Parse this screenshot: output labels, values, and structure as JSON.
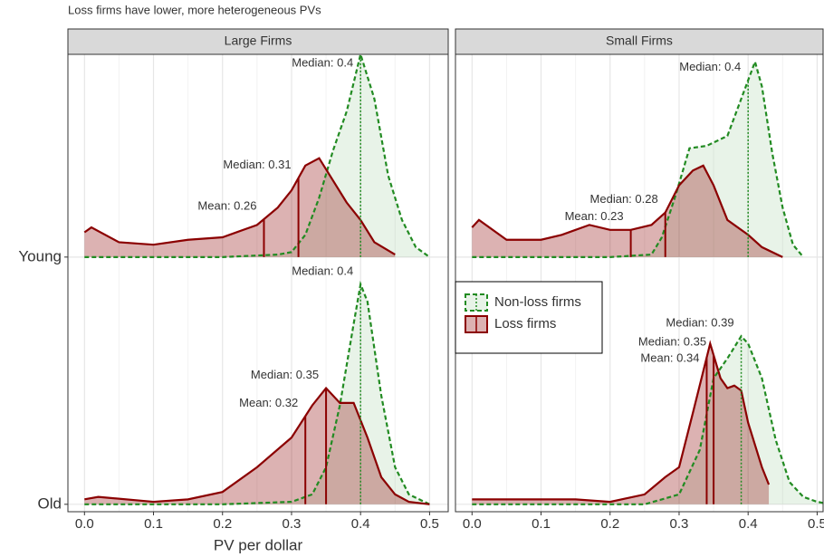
{
  "chart_data": {
    "type": "ridgeline",
    "title": "Loss firms have lower, more heterogeneous PVs",
    "x_label": "PV per dollar",
    "xlim": [
      -0.024,
      0.527
    ],
    "xticks": [
      {
        "value": 0,
        "label": "0.0"
      },
      0.1,
      0.2,
      0.3,
      0.4,
      0.5
    ],
    "ylim": [
      0.97,
      2.82
    ],
    "yticks": [
      {
        "value": 1,
        "label": "Old"
      },
      {
        "value": 2,
        "label": "Young"
      }
    ],
    "grid": true,
    "series": [
      {
        "name": "Non-loss firms",
        "color": "#228B22",
        "linetype": "dashed",
        "fill_opacity": 0.1
      },
      {
        "name": "Loss firms",
        "color": "#8B0000",
        "linetype": "solid",
        "fill_opacity": 0.3
      }
    ],
    "facets": [
      {
        "title": "Large Firms",
        "ridges": [
          {
            "curves": [
              {
                "x": [
                  0,
                  0.2,
                  0.3,
                  0.33,
                  0.35,
                  0.37,
                  0.39,
                  0.4,
                  0.41,
                  0.43,
                  0.45,
                  0.47,
                  0.5
                ],
                "density": [
                  0,
                  0,
                  0.01,
                  0.04,
                  0.15,
                  0.4,
                  0.73,
                  0.89,
                  0.82,
                  0.44,
                  0.15,
                  0.04,
                  0
                ],
                "median": 0.4,
                "median_label": "Median: 0.4"
              },
              {
                "x": [
                  0,
                  0.02,
                  0.1,
                  0.15,
                  0.2,
                  0.25,
                  0.3,
                  0.33,
                  0.35,
                  0.37,
                  0.39,
                  0.41,
                  0.43,
                  0.45,
                  0.47,
                  0.5
                ],
                "density": [
                  0.02,
                  0.03,
                  0.01,
                  0.02,
                  0.05,
                  0.15,
                  0.27,
                  0.4,
                  0.47,
                  0.41,
                  0.41,
                  0.27,
                  0.11,
                  0.04,
                  0.01,
                  0
                ],
                "median": 0.35,
                "median_label": "Median: 0.35",
                "mean": 0.32,
                "mean_label": "Mean: 0.32"
              }
            ]
          },
          {
            "curves": [
              {
                "x": [
                  0,
                  0.1,
                  0.2,
                  0.28,
                  0.3,
                  0.32,
                  0.34,
                  0.36,
                  0.38,
                  0.4,
                  0.42,
                  0.44,
                  0.46,
                  0.48,
                  0.5
                ],
                "density": [
                  0,
                  0,
                  0,
                  0.01,
                  0.02,
                  0.09,
                  0.24,
                  0.43,
                  0.59,
                  0.82,
                  0.64,
                  0.33,
                  0.15,
                  0.04,
                  0
                ],
                "median": 0.4,
                "median_label": "Median: 0.4"
              },
              {
                "x": [
                  0,
                  0.01,
                  0.05,
                  0.1,
                  0.15,
                  0.2,
                  0.25,
                  0.28,
                  0.3,
                  0.32,
                  0.34,
                  0.36,
                  0.38,
                  0.4,
                  0.42,
                  0.45
                ],
                "density": [
                  0.1,
                  0.12,
                  0.06,
                  0.05,
                  0.07,
                  0.08,
                  0.13,
                  0.2,
                  0.27,
                  0.37,
                  0.4,
                  0.31,
                  0.22,
                  0.15,
                  0.06,
                  0.01
                ],
                "median": 0.31,
                "median_label": "Median: 0.31",
                "mean": 0.26,
                "mean_label": "Mean: 0.26"
              }
            ]
          }
        ]
      },
      {
        "title": "Small Firms",
        "ridges": [
          {
            "curves": [
              {
                "x": [
                  0,
                  0.25,
                  0.3,
                  0.33,
                  0.35,
                  0.37,
                  0.39,
                  0.4,
                  0.42,
                  0.44,
                  0.46,
                  0.48,
                  0.5,
                  0.52
                ],
                "density": [
                  0,
                  0,
                  0.04,
                  0.22,
                  0.51,
                  0.59,
                  0.68,
                  0.65,
                  0.51,
                  0.26,
                  0.09,
                  0.03,
                  0.01,
                  0
                ],
                "median": 0.39,
                "median_label": "Median: 0.39"
              },
              {
                "x": [
                  0,
                  0.15,
                  0.2,
                  0.25,
                  0.28,
                  0.3,
                  0.32,
                  0.345,
                  0.36,
                  0.37,
                  0.38,
                  0.39,
                  0.4,
                  0.42,
                  0.43
                ],
                "density": [
                  0.02,
                  0.02,
                  0.01,
                  0.04,
                  0.11,
                  0.15,
                  0.37,
                  0.65,
                  0.51,
                  0.47,
                  0.48,
                  0.46,
                  0.33,
                  0.15,
                  0.08
                ],
                "median": 0.35,
                "median_label": "Median: 0.35",
                "mean": 0.34,
                "mean_label": "Mean: 0.34"
              }
            ]
          },
          {
            "curves": [
              {
                "x": [
                  0,
                  0.2,
                  0.26,
                  0.275,
                  0.295,
                  0.315,
                  0.34,
                  0.37,
                  0.39,
                  0.41,
                  0.42,
                  0.435,
                  0.45,
                  0.465,
                  0.48
                ],
                "density": [
                  0,
                  0,
                  0.01,
                  0.08,
                  0.25,
                  0.44,
                  0.45,
                  0.49,
                  0.64,
                  0.79,
                  0.69,
                  0.42,
                  0.2,
                  0.05,
                  0
                ],
                "median": 0.4,
                "median_label": "Median: 0.4"
              },
              {
                "x": [
                  0,
                  0.01,
                  0.05,
                  0.1,
                  0.13,
                  0.17,
                  0.2,
                  0.23,
                  0.26,
                  0.28,
                  0.3,
                  0.32,
                  0.335,
                  0.35,
                  0.37,
                  0.4,
                  0.42,
                  0.45
                ],
                "density": [
                  0.12,
                  0.15,
                  0.07,
                  0.07,
                  0.09,
                  0.13,
                  0.11,
                  0.11,
                  0.13,
                  0.18,
                  0.29,
                  0.35,
                  0.37,
                  0.29,
                  0.15,
                  0.09,
                  0.04,
                  0
                ],
                "median": 0.28,
                "median_label": "Median: 0.28",
                "mean": 0.23,
                "mean_label": "Mean: 0.23"
              }
            ]
          }
        ]
      }
    ]
  }
}
